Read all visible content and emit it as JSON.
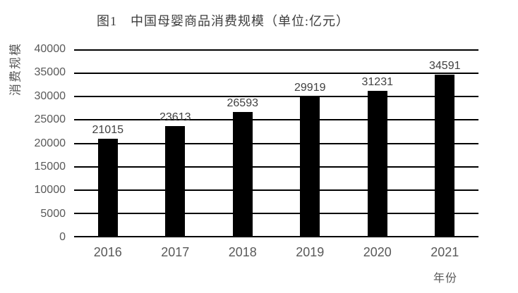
{
  "chart_data": {
    "type": "bar",
    "title": "图1　中国母婴商品消费规模（单位:亿元）",
    "ylabel": "消费规模",
    "xlabel": "年份",
    "categories": [
      "2016",
      "2017",
      "2018",
      "2019",
      "2020",
      "2021"
    ],
    "values": [
      21015,
      23613,
      26593,
      29919,
      31231,
      34591
    ],
    "ylim": [
      0,
      40000
    ],
    "yticks": [
      0,
      5000,
      10000,
      15000,
      20000,
      25000,
      30000,
      35000,
      40000
    ],
    "grid": "horizontal",
    "legend_position": "none",
    "bar_color": "#000000",
    "gridline_color": "#000000",
    "value_label_color": "#404040",
    "axis_tick_color": "#595959"
  }
}
